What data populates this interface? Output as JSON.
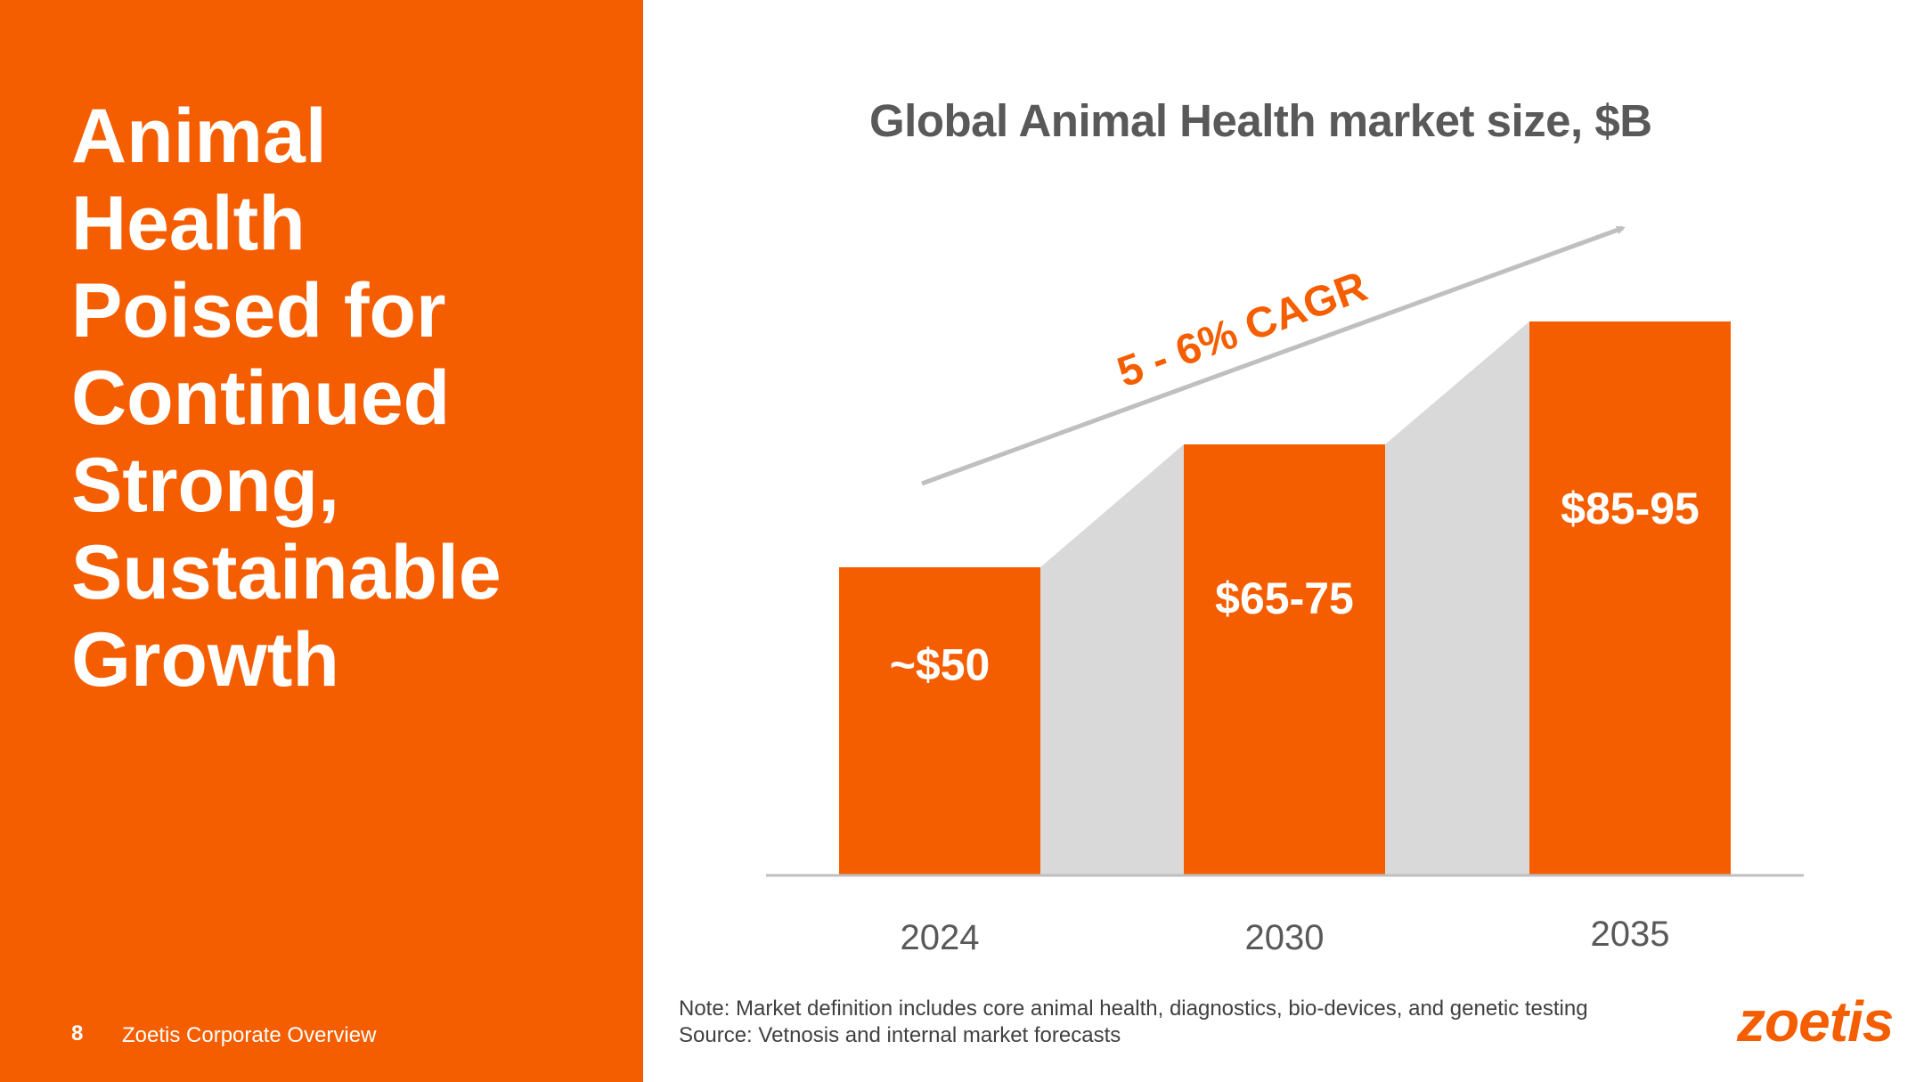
{
  "slide": {
    "headline": [
      "Animal",
      "Health",
      "Poised for",
      "Continued",
      "Strong,",
      "Sustainable",
      "Growth"
    ],
    "page_number": "8",
    "footer_title": "Zoetis Corporate Overview",
    "note_lines": [
      "Note: Market definition includes core animal health, diagnostics, bio-devices, and genetic testing",
      "Source: Vetnosis and internal market forecasts"
    ],
    "logo_text": "zoetis"
  },
  "colors": {
    "brand_orange": "#F55E00",
    "connector_gray": "#D9D9D9",
    "arrow_gray": "#BFBFBF",
    "axis_gray": "#BFBFBF",
    "title_gray": "#595959"
  },
  "chart_data": {
    "type": "bar",
    "title": "Global Animal Health market size, $B",
    "categories": [
      "2024",
      "2030",
      "2035"
    ],
    "values": [
      50,
      70,
      90
    ],
    "value_labels": [
      "~$50",
      "$65-75",
      "$85-95"
    ],
    "ylim": [
      0,
      100
    ],
    "grid": false,
    "legend": "none",
    "annotation": "5 - 6% CAGR",
    "connectors": true
  }
}
